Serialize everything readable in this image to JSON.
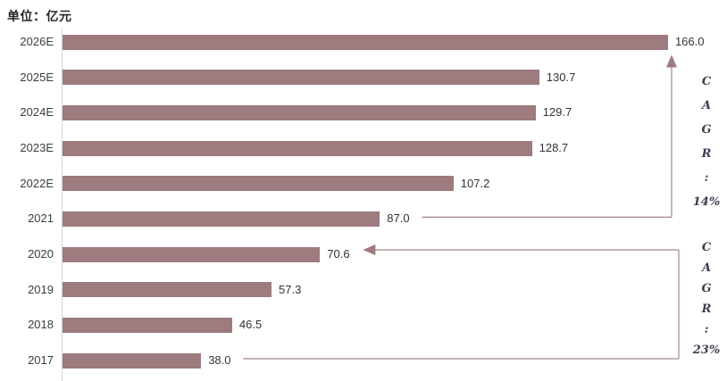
{
  "title": "单位：亿元",
  "colors": {
    "bar": "#9D7B7F",
    "connector_line": "#A5868B",
    "arrow": "#9D7B7F",
    "axis_line": "#D8D4D5",
    "category_text": "#3D3D3D",
    "value_text": "#333333",
    "cagr_text": "#3E3E52",
    "title_text": "#262626",
    "background": "#FFFFFF"
  },
  "chart_data": {
    "type": "bar",
    "orientation": "horizontal",
    "title": "单位：亿元",
    "xlabel": "",
    "ylabel": "",
    "grid": false,
    "legend": false,
    "value_labels_shown": true,
    "categories": [
      "2026E",
      "2025E",
      "2024E",
      "2023E",
      "2022E",
      "2021",
      "2020",
      "2019",
      "2018",
      "2017"
    ],
    "values": [
      166.0,
      130.7,
      129.7,
      128.7,
      107.2,
      87.0,
      70.6,
      57.3,
      46.5,
      38.0
    ],
    "value_labels": [
      "166.0",
      "130.7",
      "129.7",
      "128.7",
      "107.2",
      "87.0",
      "70.6",
      "57.3",
      "46.5",
      "38.0"
    ],
    "annotations": [
      {
        "from": "2021",
        "to": "2026E",
        "letters": [
          "C",
          "A",
          "G",
          "R",
          ":",
          "14%"
        ],
        "text": "CAGR: 14%"
      },
      {
        "from": "2017",
        "to": "2020",
        "letters": [
          "C",
          "A",
          "G",
          "R",
          ":",
          "23%"
        ],
        "text": "CAGR: 23%"
      }
    ]
  }
}
